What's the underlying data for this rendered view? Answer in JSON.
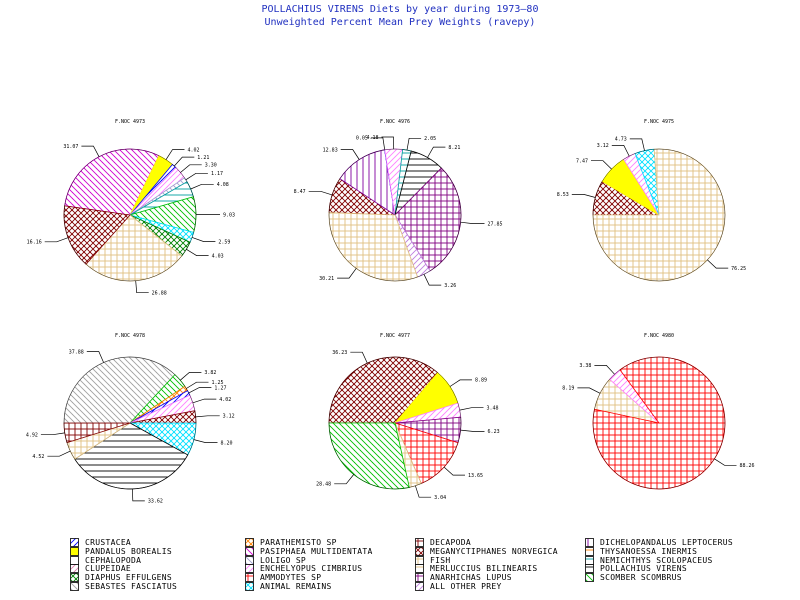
{
  "header": {
    "title": "POLLACHIUS VIRENS Diets by year during 1973—80",
    "subtitle": "Unweighted Percent Mean Prey Weights (ravepy)"
  },
  "categories": [
    {
      "name": "CRUSTACEA",
      "color": "#0000ff",
      "pattern": "diag-right"
    },
    {
      "name": "PANDALUS BOREALIS",
      "color": "#ffff00",
      "pattern": "solid"
    },
    {
      "name": "CEPHALOPODA",
      "color": "#00aa00",
      "pattern": "none"
    },
    {
      "name": "CLUPEIDAE",
      "color": "#e080b0",
      "pattern": "diag-right"
    },
    {
      "name": "DIAPHUS EFFULGENS",
      "color": "#008000",
      "pattern": "crosshatch"
    },
    {
      "name": "SEBASTES FASCIATUS",
      "color": "#a0a0a0",
      "pattern": "diag-left-dense"
    },
    {
      "name": "PARATHEMISTO SP",
      "color": "#ff8000",
      "pattern": "crosshatch"
    },
    {
      "name": "PASIPHAEA MULTIDENTATA",
      "color": "#d000d0",
      "pattern": "diag-left"
    },
    {
      "name": "LOLIGO SP",
      "color": "#a0a0d0",
      "pattern": "diag-left"
    },
    {
      "name": "ENCHELYOPUS CIMBRIUS",
      "color": "#ff80ff",
      "pattern": "diag-right"
    },
    {
      "name": "AMMODYTES SP",
      "color": "#ff0000",
      "pattern": "grid"
    },
    {
      "name": "ANIMAL REMAINS",
      "color": "#00e0ff",
      "pattern": "crosshatch"
    },
    {
      "name": "DECAPODA",
      "color": "#800000",
      "pattern": "grid"
    },
    {
      "name": "MEGANYCTIPHANES NORVEGICA",
      "color": "#800000",
      "pattern": "crosshatch"
    },
    {
      "name": "FISH",
      "color": "#e0c080",
      "pattern": "grid"
    },
    {
      "name": "MERLUCCIUS BILINEARIS",
      "color": "#e0c080",
      "pattern": "horizontal"
    },
    {
      "name": "ANARHICHAS LUPUS",
      "color": "#800080",
      "pattern": "grid"
    },
    {
      "name": "ALL OTHER PREY",
      "color": "#c080e0",
      "pattern": "diag-right"
    },
    {
      "name": "DICHELOPANDALUS LEPTOCERUS",
      "color": "#8000a0",
      "pattern": "vertical"
    },
    {
      "name": "THYSANOESSA INERMIS",
      "color": "#ff8000",
      "pattern": "horizontal"
    },
    {
      "name": "NEMICHTHYS SCOLOPACEUS",
      "color": "#00a0a0",
      "pattern": "horizontal"
    },
    {
      "name": "POLLACHIUS VIRENS",
      "color": "#000000",
      "pattern": "horizontal"
    },
    {
      "name": "SCOMBER SCOMBRUS",
      "color": "#00c000",
      "pattern": "diag-left"
    }
  ],
  "chart_data": [
    {
      "type": "pie",
      "title": "F.NOC 4973",
      "start_angle": 172,
      "slices": [
        {
          "category": "PASIPHAEA MULTIDENTATA",
          "value": 31.07,
          "label": "31.07"
        },
        {
          "category": "PANDALUS BOREALIS",
          "value": 4.02,
          "label": "4.02"
        },
        {
          "category": "CRUSTACEA",
          "value": 1.21,
          "label": "1.21"
        },
        {
          "category": "ENCHELYOPUS CIMBRIUS",
          "value": 3.3,
          "label": "3.30"
        },
        {
          "category": "LOLIGO SP",
          "value": 1.17,
          "label": "1.17"
        },
        {
          "category": "NEMICHTHYS SCOLOPACEUS",
          "value": 4.08,
          "label": "4.08"
        },
        {
          "category": "SCOMBER SCOMBRUS",
          "value": 9.03,
          "label": "9.03"
        },
        {
          "category": "ANIMAL REMAINS",
          "value": 2.59,
          "label": "2.59"
        },
        {
          "category": "DIAPHUS EFFULGENS",
          "value": 4.03,
          "label": "4.03"
        },
        {
          "category": "FISH",
          "value": 26.88,
          "label": "26.88"
        },
        {
          "category": "MEGANYCTIPHANES NORVEGICA",
          "value": 16.16,
          "label": "16.16"
        }
      ]
    },
    {
      "type": "pie",
      "title": "F.NOC 4976",
      "start_angle": 178,
      "slices": [
        {
          "category": "MEGANYCTIPHANES NORVEGICA",
          "value": 8.47,
          "label": "8.47"
        },
        {
          "category": "DICHELOPANDALUS LEPTOCERUS",
          "value": 12.83,
          "label": "12.83"
        },
        {
          "category": "CRUSTACEA",
          "value": 0.05,
          "label": "0.05"
        },
        {
          "category": "ENCHELYOPUS CIMBRIUS",
          "value": 4.18,
          "label": "4.18"
        },
        {
          "category": "NEMICHTHYS SCOLOPACEUS",
          "value": 2.05,
          "label": "2.05"
        },
        {
          "category": "POLLACHIUS VIRENS",
          "value": 8.21,
          "label": "8.21"
        },
        {
          "category": "ANARHICHAS LUPUS",
          "value": 27.85,
          "label": "27.85"
        },
        {
          "category": "ALL OTHER PREY",
          "value": 3.26,
          "label": "3.26"
        },
        {
          "category": "FISH",
          "value": 30.21,
          "label": "30.21"
        }
      ]
    },
    {
      "type": "pie",
      "title": "F.NOC 4975",
      "start_angle": 180,
      "slices": [
        {
          "category": "MEGANYCTIPHANES NORVEGICA",
          "value": 8.53,
          "label": "8.53"
        },
        {
          "category": "PANDALUS BOREALIS",
          "value": 7.47,
          "label": "7.47"
        },
        {
          "category": "ENCHELYOPUS CIMBRIUS",
          "value": 3.12,
          "label": "3.12"
        },
        {
          "category": "ANIMAL REMAINS",
          "value": 4.73,
          "label": "4.73"
        },
        {
          "category": "FISH",
          "value": 76.25,
          "label": "76.25"
        }
      ]
    },
    {
      "type": "pie",
      "title": "F.NOC 4978",
      "start_angle": 180,
      "slices": [
        {
          "category": "SEBASTES FASCIATUS",
          "value": 37.88,
          "label": "37.88"
        },
        {
          "category": "SCOMBER SCOMBRUS",
          "value": 3.82,
          "label": "3.82"
        },
        {
          "category": "PARATHEMISTO SP",
          "value": 1.25,
          "label": "1.25"
        },
        {
          "category": "CRUSTACEA",
          "value": 1.27,
          "label": "1.27"
        },
        {
          "category": "ENCHELYOPUS CIMBRIUS",
          "value": 4.02,
          "label": "4.02"
        },
        {
          "category": "MEGANYCTIPHANES NORVEGICA",
          "value": 3.12,
          "label": "3.12"
        },
        {
          "category": "ANIMAL REMAINS",
          "value": 8.2,
          "label": "8.20"
        },
        {
          "category": "POLLACHIUS VIRENS",
          "value": 33.62,
          "label": "33.62"
        },
        {
          "category": "FISH",
          "value": 4.52,
          "label": "4.52"
        },
        {
          "category": "DECAPODA",
          "value": 4.92,
          "label": "4.92"
        }
      ]
    },
    {
      "type": "pie",
      "title": "F.NOC 4977",
      "start_angle": 180,
      "slices": [
        {
          "category": "MEGANYCTIPHANES NORVEGICA",
          "value": 36.23,
          "label": "36.23"
        },
        {
          "category": "PANDALUS BOREALIS",
          "value": 8.89,
          "label": "8.89"
        },
        {
          "category": "ENCHELYOPUS CIMBRIUS",
          "value": 3.48,
          "label": "3.48"
        },
        {
          "category": "ANARHICHAS LUPUS",
          "value": 6.23,
          "label": "6.23"
        },
        {
          "category": "AMMODYTES SP",
          "value": 13.65,
          "label": "13.65"
        },
        {
          "category": "FISH",
          "value": 3.04,
          "label": "3.04"
        },
        {
          "category": "SCOMBER SCOMBRUS",
          "value": 28.48,
          "label": "28.48"
        }
      ]
    },
    {
      "type": "pie",
      "title": "F.NOC 4980",
      "start_angle": 168,
      "slices": [
        {
          "category": "FISH",
          "value": 8.19,
          "label": "8.19"
        },
        {
          "category": "ENCHELYOPUS CIMBRIUS",
          "value": 3.38,
          "label": "3.38"
        },
        {
          "category": "AMMODYTES SP",
          "value": 88.26,
          "label": "88.26"
        }
      ]
    }
  ]
}
